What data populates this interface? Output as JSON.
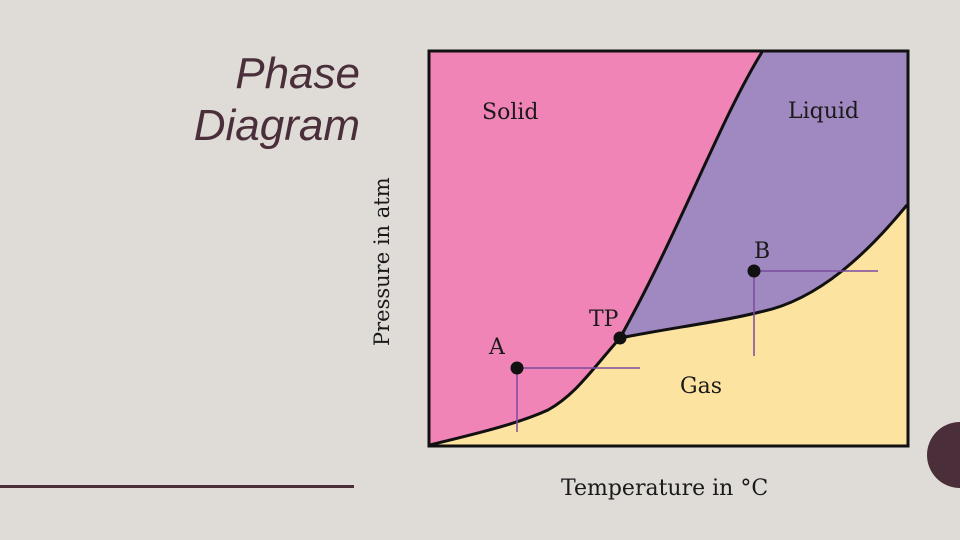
{
  "slide": {
    "title_line1": "Phase",
    "title_line2": "Diagram"
  },
  "diagram": {
    "y_axis_label": "Pressure in atm",
    "x_axis_label": "Temperature in °C",
    "regions": {
      "solid": "Solid",
      "liquid": "Liquid",
      "gas": "Gas"
    },
    "points": {
      "a": "A",
      "b": "B",
      "tp": "TP"
    },
    "colors": {
      "solid": "#f184b6",
      "liquid": "#a088c0",
      "gas": "#fde3a0",
      "frame": "#111111",
      "guide": "#7a4aa0",
      "title": "#4a2f3b",
      "background": "#dfdbd6"
    }
  }
}
